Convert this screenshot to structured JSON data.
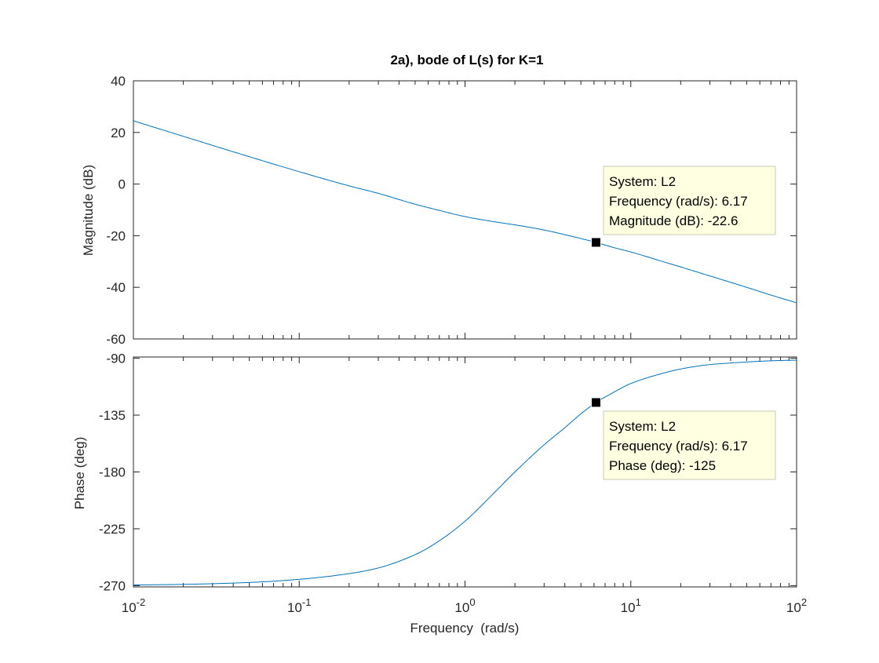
{
  "chart_data": {
    "type": "line",
    "title": "2a), bode of L(s) for K=1",
    "xlabel": "Frequency  (rad/s)",
    "xscale": "log",
    "xlim": [
      0.01,
      100
    ],
    "x_ticks": [
      {
        "base": "10",
        "exp": "-2"
      },
      {
        "base": "10",
        "exp": "-1"
      },
      {
        "base": "10",
        "exp": "0"
      },
      {
        "base": "10",
        "exp": "1"
      },
      {
        "base": "10",
        "exp": "2"
      }
    ],
    "line_color": "#0072BD",
    "tooltip_bg": "#FFFFE1",
    "panels": [
      {
        "id": "magnitude",
        "ylabel": "Magnitude (dB)",
        "ylim": [
          -60,
          40
        ],
        "yticks": [
          40,
          20,
          0,
          -20,
          -40,
          -60
        ],
        "ytick_labels": [
          "40",
          "20",
          "0",
          "-20",
          "-40",
          "-60"
        ],
        "series": [
          {
            "name": "L2",
            "x": [
              0.01,
              0.02,
              0.05,
              0.1,
              0.2,
              0.3,
              0.5,
              0.7,
              1,
              1.5,
              2,
              3,
              4,
              5,
              6.17,
              8,
              10,
              15,
              20,
              30,
              50,
              70,
              100
            ],
            "y": [
              24.5,
              18.5,
              10.6,
              4.8,
              -0.7,
              -3.6,
              -7.8,
              -10.2,
              -12.6,
              -14.6,
              -15.8,
              -17.8,
              -19.6,
              -21.1,
              -22.6,
              -24.7,
              -26.3,
              -29.7,
              -32.1,
              -35.6,
              -40.0,
              -43.0,
              -46.0
            ]
          }
        ],
        "datatip": {
          "x": 6.17,
          "y": -22.6,
          "lines": [
            "System: L2",
            "Frequency (rad/s): 6.17",
            "Magnitude (dB): -22.6"
          ]
        }
      },
      {
        "id": "phase",
        "ylabel": "Phase (deg)",
        "ylim": [
          -271,
          -89
        ],
        "yticks": [
          -90,
          -135,
          -180,
          -225,
          -270
        ],
        "ytick_labels": [
          "-90",
          "-135",
          "-180",
          "-225",
          "-270"
        ],
        "series": [
          {
            "name": "L2",
            "x": [
              0.01,
              0.02,
              0.05,
              0.1,
              0.2,
              0.3,
              0.5,
              0.7,
              1,
              1.5,
              2,
              3,
              4,
              5,
              6.17,
              8,
              10,
              15,
              20,
              30,
              50,
              70,
              100
            ],
            "y": [
              -269.5,
              -269.0,
              -267.5,
              -265.0,
              -260.5,
              -256.0,
              -245.5,
              -234.5,
              -219.0,
              -196.5,
              -180.0,
              -158.5,
              -145.0,
              -134.0,
              -125.0,
              -116.5,
              -110.0,
              -102.5,
              -98.5,
              -95.0,
              -93.0,
              -92.0,
              -91.5
            ]
          }
        ],
        "datatip": {
          "x": 6.17,
          "y": -125,
          "lines": [
            "System: L2",
            "Frequency (rad/s): 6.17",
            "Phase (deg): -125"
          ]
        }
      }
    ]
  }
}
